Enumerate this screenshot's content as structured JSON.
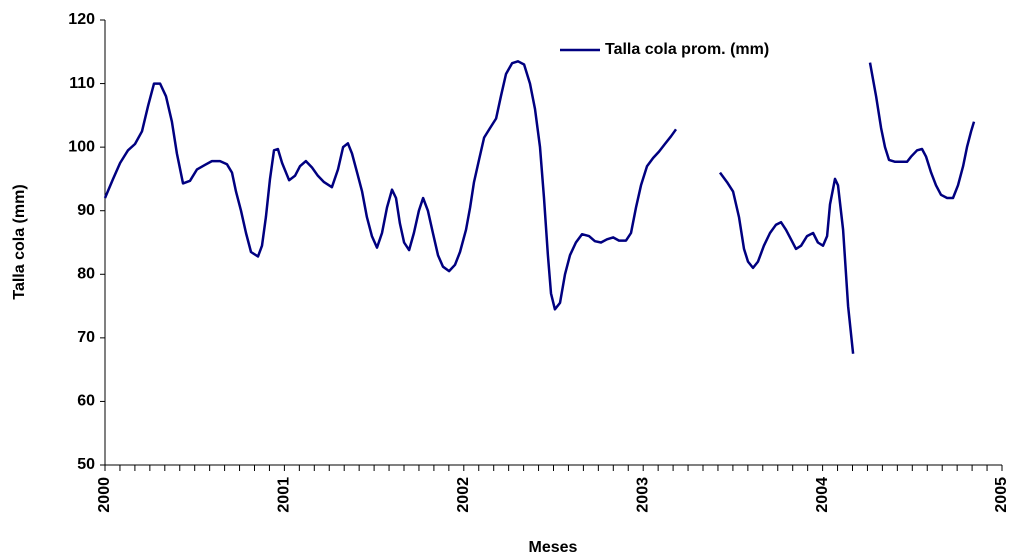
{
  "chart_data": {
    "type": "line",
    "x_label": "Meses",
    "y_label": "Talla cola (mm)",
    "x": [
      2000.0,
      2000.045,
      2000.084,
      2000.128,
      2000.167,
      2000.206,
      2000.24,
      2000.273,
      2000.307,
      2000.34,
      2000.373,
      2000.401,
      2000.435,
      2000.474,
      2000.513,
      2000.557,
      2000.596,
      2000.641,
      2000.68,
      2000.708,
      2000.73,
      2000.758,
      2000.786,
      2000.814,
      2000.853,
      2000.875,
      2000.897,
      2000.92,
      2000.942,
      2000.964,
      2000.987,
      2001.026,
      2001.059,
      2001.087,
      2001.12,
      2001.154,
      2001.187,
      2001.221,
      2001.265,
      2001.299,
      2001.327,
      2001.354,
      2001.377,
      2001.405,
      2001.433,
      2001.46,
      2001.488,
      2001.516,
      2001.544,
      2001.572,
      2001.6,
      2001.622,
      2001.644,
      2001.667,
      2001.695,
      2001.722,
      2001.75,
      2001.773,
      2001.8,
      2001.828,
      2001.856,
      2001.884,
      2001.918,
      2001.951,
      2001.979,
      2002.012,
      2002.035,
      2002.057,
      2002.085,
      2002.113,
      2002.146,
      2002.18,
      2002.207,
      2002.235,
      2002.269,
      2002.302,
      2002.336,
      2002.369,
      2002.397,
      2002.425,
      2002.447,
      2002.469,
      2002.486,
      2002.508,
      2002.536,
      2002.564,
      2002.592,
      2002.625,
      2002.659,
      2002.698,
      2002.731,
      2002.765,
      2002.798,
      2002.832,
      2002.865,
      2002.904,
      2002.932,
      2002.96,
      2002.988,
      2003.021,
      2003.055,
      2003.088,
      2003.121,
      2003.155,
      2003.183,
      2003.3,
      2003.428,
      2003.467,
      2003.501,
      2003.534,
      2003.562,
      2003.584,
      2003.612,
      2003.64,
      2003.673,
      2003.707,
      2003.74,
      2003.768,
      2003.796,
      2003.824,
      2003.852,
      2003.88,
      2003.913,
      2003.947,
      2003.974,
      2004.002,
      2004.025,
      2004.041,
      2004.069,
      2004.086,
      2004.114,
      2004.142,
      2004.17,
      2004.22,
      2004.264,
      2004.298,
      2004.326,
      2004.348,
      2004.37,
      2004.404,
      2004.437,
      2004.471,
      2004.493,
      2004.527,
      2004.554,
      2004.577,
      2004.605,
      2004.632,
      2004.66,
      2004.694,
      2004.727,
      2004.755,
      2004.783,
      2004.805,
      2004.828,
      2004.844
    ],
    "series": [
      {
        "name": "Talla cola prom. (mm)",
        "color": "#000080",
        "values": [
          92,
          95,
          97.5,
          99.5,
          100.5,
          102.5,
          106.5,
          110,
          110,
          108,
          104,
          99,
          94.3,
          94.7,
          96.5,
          97.2,
          97.8,
          97.8,
          97.3,
          96,
          93,
          90,
          86.5,
          83.5,
          82.8,
          84.5,
          89,
          95,
          99.5,
          99.7,
          97.5,
          94.8,
          95.5,
          97,
          97.8,
          96.8,
          95.5,
          94.5,
          93.7,
          96.5,
          100,
          100.6,
          99,
          96,
          93,
          89,
          86,
          84.2,
          86.5,
          90.5,
          93.3,
          92,
          88,
          85,
          83.8,
          86.5,
          90,
          92,
          90,
          86.5,
          83,
          81.2,
          80.5,
          81.5,
          83.5,
          87,
          90.5,
          94.5,
          98,
          101.5,
          103,
          104.5,
          108,
          111.5,
          113.2,
          113.5,
          113,
          110,
          106,
          100,
          92,
          83,
          77,
          74.5,
          75.5,
          80,
          83,
          85,
          86.3,
          86,
          85.2,
          85,
          85.5,
          85.8,
          85.3,
          85.3,
          86.5,
          90.5,
          94,
          97,
          98.3,
          99.3,
          100.5,
          101.7,
          102.8,
          null,
          96,
          94.5,
          93,
          89,
          84,
          82,
          81,
          82,
          84.5,
          86.5,
          87.8,
          88.2,
          87,
          85.5,
          84,
          84.5,
          86,
          86.5,
          85,
          84.5,
          86,
          91,
          95,
          94,
          87,
          75,
          67.5,
          null,
          113.3,
          108,
          103,
          100,
          98,
          97.7,
          97.7,
          97.7,
          98.5,
          99.5,
          99.7,
          98.5,
          96,
          94,
          92.5,
          92,
          92,
          94,
          97,
          100,
          102.5,
          104
        ]
      }
    ],
    "xlim": [
      2000,
      2005
    ],
    "xticks": [
      2000,
      2001,
      2002,
      2003,
      2004,
      2005
    ],
    "ylim": [
      50,
      120
    ],
    "yticks": [
      50,
      60,
      70,
      80,
      90,
      100,
      110,
      120
    ],
    "grid": false,
    "legend": "top-right"
  }
}
